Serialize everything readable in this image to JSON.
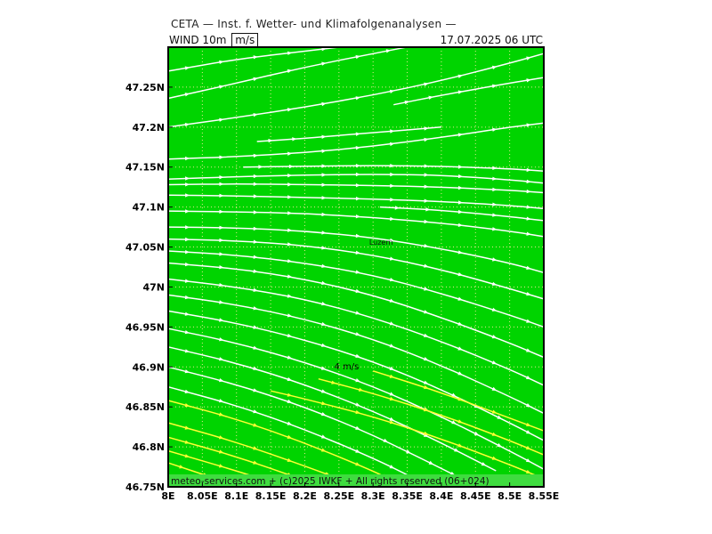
{
  "header": {
    "title": "CETA — Inst. f. Wetter- und Klimafolgenanalysen —",
    "variable": "WIND 10m",
    "unit": "m/s",
    "valid_time": "17.07.2025 06 UTC"
  },
  "map": {
    "lon_range": [
      8.0,
      8.55
    ],
    "lat_range": [
      46.75,
      47.3
    ],
    "background_color": "#00d400",
    "grid_color": "#e8e890",
    "lon_ticks": [
      {
        "value": 8.0,
        "label": "8E"
      },
      {
        "value": 8.05,
        "label": "8.05E"
      },
      {
        "value": 8.1,
        "label": "8.1E"
      },
      {
        "value": 8.15,
        "label": "8.15E"
      },
      {
        "value": 8.2,
        "label": "8.2E"
      },
      {
        "value": 8.25,
        "label": "8.25E"
      },
      {
        "value": 8.3,
        "label": "8.3E"
      },
      {
        "value": 8.35,
        "label": "8.35E"
      },
      {
        "value": 8.4,
        "label": "8.4E"
      },
      {
        "value": 8.45,
        "label": "8.45E"
      },
      {
        "value": 8.5,
        "label": "8.5E"
      },
      {
        "value": 8.55,
        "label": "8.55E"
      }
    ],
    "lat_ticks": [
      {
        "value": 46.75,
        "label": "46.75N"
      },
      {
        "value": 46.8,
        "label": "46.8N"
      },
      {
        "value": 46.85,
        "label": "46.85N"
      },
      {
        "value": 46.9,
        "label": "46.9N"
      },
      {
        "value": 46.95,
        "label": "46.95N"
      },
      {
        "value": 47.0,
        "label": "47N"
      },
      {
        "value": 47.05,
        "label": "47.05N"
      },
      {
        "value": 47.1,
        "label": "47.1N"
      },
      {
        "value": 47.15,
        "label": "47.15N"
      },
      {
        "value": 47.2,
        "label": "47.2N"
      },
      {
        "value": 47.25,
        "label": "47.25N"
      }
    ],
    "place": {
      "name": "Luzern",
      "lon": 8.31,
      "lat": 47.053
    },
    "legend": {
      "label": "4 m/s",
      "lon": 8.243,
      "lat": 46.897
    },
    "streamline_colors": {
      "slow": "#ffffff",
      "fast": "#ffff33"
    },
    "footer": "meteo-services.com + (c)2025 IWKF + All rights reserved (06+024)"
  },
  "streamlines": [
    {
      "color": "white",
      "points": [
        [
          8.0,
          47.27
        ],
        [
          8.1,
          47.285
        ],
        [
          8.2,
          47.295
        ],
        [
          8.3,
          47.305
        ]
      ]
    },
    {
      "color": "white",
      "points": [
        [
          8.0,
          47.236
        ],
        [
          8.1,
          47.255
        ],
        [
          8.2,
          47.275
        ],
        [
          8.3,
          47.292
        ],
        [
          8.38,
          47.305
        ]
      ]
    },
    {
      "color": "white",
      "points": [
        [
          8.0,
          47.2
        ],
        [
          8.1,
          47.212
        ],
        [
          8.2,
          47.225
        ],
        [
          8.3,
          47.24
        ],
        [
          8.4,
          47.258
        ],
        [
          8.5,
          47.28
        ],
        [
          8.55,
          47.292
        ]
      ]
    },
    {
      "color": "white",
      "points": [
        [
          8.33,
          47.228
        ],
        [
          8.4,
          47.24
        ],
        [
          8.5,
          47.255
        ],
        [
          8.55,
          47.262
        ]
      ]
    },
    {
      "color": "white",
      "points": [
        [
          8.0,
          47.16
        ],
        [
          8.1,
          47.163
        ],
        [
          8.2,
          47.168
        ],
        [
          8.3,
          47.176
        ],
        [
          8.4,
          47.187
        ],
        [
          8.5,
          47.2
        ],
        [
          8.55,
          47.205
        ]
      ]
    },
    {
      "color": "white",
      "points": [
        [
          8.13,
          47.182
        ],
        [
          8.2,
          47.186
        ],
        [
          8.3,
          47.193
        ],
        [
          8.4,
          47.2
        ]
      ]
    },
    {
      "color": "white",
      "points": [
        [
          8.11,
          47.15
        ],
        [
          8.2,
          47.151
        ],
        [
          8.3,
          47.152
        ],
        [
          8.4,
          47.151
        ],
        [
          8.5,
          47.148
        ],
        [
          8.55,
          47.145
        ]
      ]
    },
    {
      "color": "white",
      "points": [
        [
          8.0,
          47.135
        ],
        [
          8.1,
          47.138
        ],
        [
          8.2,
          47.14
        ],
        [
          8.3,
          47.141
        ],
        [
          8.4,
          47.14
        ],
        [
          8.5,
          47.134
        ],
        [
          8.55,
          47.13
        ]
      ]
    },
    {
      "color": "white",
      "points": [
        [
          8.0,
          47.128
        ],
        [
          8.1,
          47.129
        ],
        [
          8.2,
          47.128
        ],
        [
          8.3,
          47.127
        ],
        [
          8.4,
          47.125
        ],
        [
          8.5,
          47.121
        ],
        [
          8.55,
          47.118
        ]
      ]
    },
    {
      "color": "white",
      "points": [
        [
          8.0,
          47.115
        ],
        [
          8.1,
          47.114
        ],
        [
          8.2,
          47.112
        ],
        [
          8.3,
          47.11
        ],
        [
          8.4,
          47.107
        ],
        [
          8.5,
          47.102
        ],
        [
          8.55,
          47.098
        ]
      ]
    },
    {
      "color": "white",
      "points": [
        [
          8.0,
          47.095
        ],
        [
          8.1,
          47.094
        ],
        [
          8.2,
          47.092
        ],
        [
          8.3,
          47.087
        ],
        [
          8.4,
          47.08
        ],
        [
          8.5,
          47.07
        ],
        [
          8.55,
          47.063
        ]
      ]
    },
    {
      "color": "white",
      "points": [
        [
          8.31,
          47.1
        ],
        [
          8.4,
          47.096
        ],
        [
          8.5,
          47.088
        ],
        [
          8.55,
          47.083
        ]
      ]
    },
    {
      "color": "white",
      "points": [
        [
          8.0,
          47.075
        ],
        [
          8.1,
          47.074
        ],
        [
          8.2,
          47.07
        ],
        [
          8.3,
          47.062
        ],
        [
          8.4,
          47.048
        ],
        [
          8.5,
          47.03
        ],
        [
          8.55,
          47.018
        ]
      ]
    },
    {
      "color": "white",
      "points": [
        [
          8.0,
          47.06
        ],
        [
          8.1,
          47.058
        ],
        [
          8.2,
          47.052
        ],
        [
          8.3,
          47.04
        ],
        [
          8.4,
          47.022
        ],
        [
          8.5,
          46.998
        ],
        [
          8.55,
          46.985
        ]
      ]
    },
    {
      "color": "white",
      "points": [
        [
          8.0,
          47.045
        ],
        [
          8.1,
          47.04
        ],
        [
          8.2,
          47.03
        ],
        [
          8.3,
          47.015
        ],
        [
          8.4,
          46.992
        ],
        [
          8.5,
          46.965
        ],
        [
          8.55,
          46.95
        ]
      ]
    },
    {
      "color": "white",
      "points": [
        [
          8.0,
          47.03
        ],
        [
          8.1,
          47.023
        ],
        [
          8.2,
          47.01
        ],
        [
          8.3,
          46.99
        ],
        [
          8.4,
          46.962
        ],
        [
          8.5,
          46.93
        ],
        [
          8.55,
          46.912
        ]
      ]
    },
    {
      "color": "white",
      "points": [
        [
          8.0,
          47.01
        ],
        [
          8.1,
          47.0
        ],
        [
          8.2,
          46.985
        ],
        [
          8.3,
          46.962
        ],
        [
          8.4,
          46.932
        ],
        [
          8.5,
          46.897
        ],
        [
          8.55,
          46.877
        ]
      ]
    },
    {
      "color": "white",
      "points": [
        [
          8.0,
          46.99
        ],
        [
          8.1,
          46.978
        ],
        [
          8.2,
          46.96
        ],
        [
          8.3,
          46.935
        ],
        [
          8.4,
          46.902
        ],
        [
          8.5,
          46.863
        ],
        [
          8.55,
          46.842
        ]
      ]
    },
    {
      "color": "white",
      "points": [
        [
          8.0,
          46.97
        ],
        [
          8.1,
          46.955
        ],
        [
          8.2,
          46.934
        ],
        [
          8.3,
          46.907
        ],
        [
          8.4,
          46.872
        ],
        [
          8.5,
          46.83
        ],
        [
          8.55,
          46.808
        ]
      ]
    },
    {
      "color": "white",
      "points": [
        [
          8.0,
          46.948
        ],
        [
          8.1,
          46.93
        ],
        [
          8.2,
          46.906
        ],
        [
          8.3,
          46.876
        ],
        [
          8.4,
          46.838
        ],
        [
          8.5,
          46.795
        ],
        [
          8.55,
          46.772
        ]
      ]
    },
    {
      "color": "white",
      "points": [
        [
          8.0,
          46.925
        ],
        [
          8.1,
          46.905
        ],
        [
          8.2,
          46.878
        ],
        [
          8.3,
          46.845
        ],
        [
          8.4,
          46.805
        ],
        [
          8.48,
          46.77
        ]
      ]
    },
    {
      "color": "white",
      "points": [
        [
          8.0,
          46.9
        ],
        [
          8.1,
          46.878
        ],
        [
          8.2,
          46.85
        ],
        [
          8.3,
          46.815
        ],
        [
          8.4,
          46.773
        ],
        [
          8.43,
          46.76
        ]
      ]
    },
    {
      "color": "white",
      "points": [
        [
          8.0,
          46.875
        ],
        [
          8.1,
          46.852
        ],
        [
          8.2,
          46.822
        ],
        [
          8.3,
          46.786
        ],
        [
          8.35,
          46.765
        ]
      ]
    },
    {
      "color": "yellow",
      "points": [
        [
          8.0,
          46.858
        ],
        [
          8.1,
          46.835
        ],
        [
          8.2,
          46.805
        ],
        [
          8.3,
          46.77
        ],
        [
          8.33,
          46.757
        ]
      ]
    },
    {
      "color": "yellow",
      "points": [
        [
          8.0,
          46.83
        ],
        [
          8.1,
          46.806
        ],
        [
          8.2,
          46.776
        ],
        [
          8.26,
          46.757
        ]
      ]
    },
    {
      "color": "yellow",
      "points": [
        [
          8.0,
          46.812
        ],
        [
          8.1,
          46.788
        ],
        [
          8.2,
          46.758
        ]
      ]
    },
    {
      "color": "yellow",
      "points": [
        [
          8.0,
          46.795
        ],
        [
          8.1,
          46.77
        ],
        [
          8.15,
          46.756
        ]
      ]
    },
    {
      "color": "yellow",
      "points": [
        [
          8.0,
          46.78
        ],
        [
          8.07,
          46.76
        ]
      ]
    },
    {
      "color": "yellow",
      "points": [
        [
          8.15,
          46.87
        ],
        [
          8.2,
          46.86
        ],
        [
          8.3,
          46.838
        ],
        [
          8.4,
          46.81
        ],
        [
          8.5,
          46.778
        ],
        [
          8.55,
          46.76
        ]
      ]
    },
    {
      "color": "yellow",
      "points": [
        [
          8.22,
          46.885
        ],
        [
          8.3,
          46.867
        ],
        [
          8.4,
          46.84
        ],
        [
          8.5,
          46.808
        ],
        [
          8.55,
          46.79
        ]
      ]
    },
    {
      "color": "yellow",
      "points": [
        [
          8.3,
          46.895
        ],
        [
          8.4,
          46.868
        ],
        [
          8.5,
          46.836
        ],
        [
          8.55,
          46.82
        ]
      ]
    }
  ]
}
